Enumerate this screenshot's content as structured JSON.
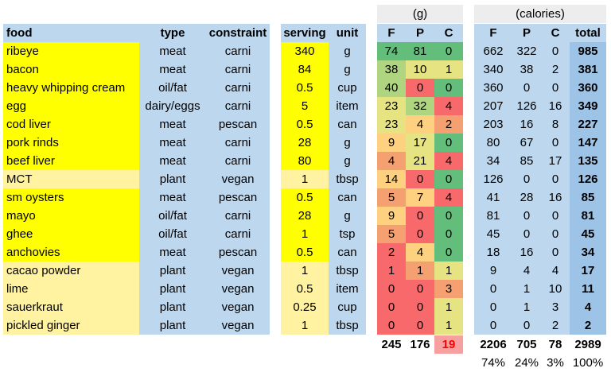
{
  "headers": {
    "food": "food",
    "type": "type",
    "constraint": "constraint",
    "serving": "serving",
    "unit": "unit",
    "F": "F",
    "P": "P",
    "C": "C",
    "cF": "F",
    "cP": "P",
    "cC": "C",
    "total": "total",
    "grams_group": "(g)",
    "cal_group": "(calories)"
  },
  "rows": [
    {
      "food": "ribeye",
      "type": "meat",
      "constraint": "carni",
      "serving": "340",
      "unit": "g",
      "gF": "74",
      "gP": "81",
      "gC": "0",
      "cF": "662",
      "cP": "322",
      "cC": "0",
      "total": "985",
      "hl": true,
      "fc": "g-grn",
      "pc": "g-grn",
      "cc": "g-grn"
    },
    {
      "food": "bacon",
      "type": "meat",
      "constraint": "carni",
      "serving": "84",
      "unit": "g",
      "gF": "38",
      "gP": "10",
      "gC": "1",
      "cF": "340",
      "cP": "38",
      "cC": "2",
      "total": "381",
      "hl": true,
      "fc": "g-lgr",
      "pc": "g-ylg",
      "cc": "g-ylg"
    },
    {
      "food": "heavy whipping cream",
      "type": "oil/fat",
      "constraint": "carni",
      "serving": "0.5",
      "unit": "cup",
      "gF": "40",
      "gP": "0",
      "gC": "0",
      "cF": "360",
      "cP": "0",
      "cC": "0",
      "total": "360",
      "hl": true,
      "fc": "g-lgr",
      "pc": "g-red",
      "cc": "g-grn"
    },
    {
      "food": "egg",
      "type": "dairy/eggs",
      "constraint": "carni",
      "serving": "5",
      "unit": "item",
      "gF": "23",
      "gP": "32",
      "gC": "4",
      "cF": "207",
      "cP": "126",
      "cC": "16",
      "total": "349",
      "hl": true,
      "fc": "g-ylg",
      "pc": "g-lgr",
      "cc": "g-red"
    },
    {
      "food": "cod liver",
      "type": "meat",
      "constraint": "pescan",
      "serving": "0.5",
      "unit": "can",
      "gF": "23",
      "gP": "4",
      "gC": "2",
      "cF": "203",
      "cP": "16",
      "cC": "8",
      "total": "227",
      "hl": true,
      "fc": "g-ylg",
      "pc": "g-yel",
      "cc": "g-org"
    },
    {
      "food": "pork rinds",
      "type": "meat",
      "constraint": "carni",
      "serving": "28",
      "unit": "g",
      "gF": "9",
      "gP": "17",
      "gC": "0",
      "cF": "80",
      "cP": "67",
      "cC": "0",
      "total": "147",
      "hl": true,
      "fc": "g-yel",
      "pc": "g-ylg",
      "cc": "g-grn"
    },
    {
      "food": "beef liver",
      "type": "meat",
      "constraint": "carni",
      "serving": "80",
      "unit": "g",
      "gF": "4",
      "gP": "21",
      "gC": "4",
      "cF": "34",
      "cP": "85",
      "cC": "17",
      "total": "135",
      "hl": true,
      "fc": "g-org",
      "pc": "g-ylg",
      "cc": "g-red"
    },
    {
      "food": "MCT",
      "type": "plant",
      "constraint": "vegan",
      "serving": "1",
      "unit": "tbsp",
      "gF": "14",
      "gP": "0",
      "gC": "0",
      "cF": "126",
      "cP": "0",
      "cC": "0",
      "total": "126",
      "hl": false,
      "fc": "g-yel",
      "pc": "g-red",
      "cc": "g-grn"
    },
    {
      "food": "sm oysters",
      "type": "meat",
      "constraint": "pescan",
      "serving": "0.5",
      "unit": "can",
      "gF": "5",
      "gP": "7",
      "gC": "4",
      "cF": "41",
      "cP": "28",
      "cC": "16",
      "total": "85",
      "hl": true,
      "fc": "g-org",
      "pc": "g-yel",
      "cc": "g-red"
    },
    {
      "food": "mayo",
      "type": "oil/fat",
      "constraint": "carni",
      "serving": "28",
      "unit": "g",
      "gF": "9",
      "gP": "0",
      "gC": "0",
      "cF": "81",
      "cP": "0",
      "cC": "0",
      "total": "81",
      "hl": true,
      "fc": "g-yel",
      "pc": "g-red",
      "cc": "g-grn"
    },
    {
      "food": "ghee",
      "type": "oil/fat",
      "constraint": "carni",
      "serving": "1",
      "unit": "tsp",
      "gF": "5",
      "gP": "0",
      "gC": "0",
      "cF": "45",
      "cP": "0",
      "cC": "0",
      "total": "45",
      "hl": true,
      "fc": "g-org",
      "pc": "g-red",
      "cc": "g-grn"
    },
    {
      "food": "anchovies",
      "type": "meat",
      "constraint": "pescan",
      "serving": "0.5",
      "unit": "can",
      "gF": "2",
      "gP": "4",
      "gC": "0",
      "cF": "18",
      "cP": "16",
      "cC": "0",
      "total": "34",
      "hl": true,
      "fc": "g-red",
      "pc": "g-yel",
      "cc": "g-grn"
    },
    {
      "food": "cacao powder",
      "type": "plant",
      "constraint": "vegan",
      "serving": "1",
      "unit": "tbsp",
      "gF": "1",
      "gP": "1",
      "gC": "1",
      "cF": "9",
      "cP": "4",
      "cC": "4",
      "total": "17",
      "hl": false,
      "fc": "g-red",
      "pc": "g-org",
      "cc": "g-ylg"
    },
    {
      "food": "lime",
      "type": "plant",
      "constraint": "vegan",
      "serving": "0.5",
      "unit": "item",
      "gF": "0",
      "gP": "0",
      "gC": "3",
      "cF": "0",
      "cP": "1",
      "cC": "10",
      "total": "11",
      "hl": false,
      "fc": "g-red",
      "pc": "g-red",
      "cc": "g-org"
    },
    {
      "food": "sauerkraut",
      "type": "plant",
      "constraint": "vegan",
      "serving": "0.25",
      "unit": "cup",
      "gF": "0",
      "gP": "0",
      "gC": "1",
      "cF": "0",
      "cP": "1",
      "cC": "3",
      "total": "4",
      "hl": false,
      "fc": "g-red",
      "pc": "g-red",
      "cc": "g-ylg"
    },
    {
      "food": "pickled ginger",
      "type": "plant",
      "constraint": "vegan",
      "serving": "1",
      "unit": "tbsp",
      "gF": "0",
      "gP": "0",
      "gC": "1",
      "cF": "0",
      "cP": "0",
      "cC": "2",
      "total": "2",
      "hl": false,
      "fc": "g-red",
      "pc": "g-red",
      "cc": "g-ylg"
    }
  ],
  "totals": {
    "gF": "245",
    "gP": "176",
    "gC": "19",
    "cF": "2206",
    "cP": "705",
    "cC": "78",
    "total": "2989"
  },
  "percents": {
    "F": "74%",
    "P": "24%",
    "C": "3%",
    "total": "100%"
  },
  "colors": {
    "highlight": "#ffff00",
    "light_highlight": "#fff2a0",
    "blue": "#bdd7ee",
    "total_blue": "#9dc3e6",
    "red_text": "#ff0000"
  }
}
